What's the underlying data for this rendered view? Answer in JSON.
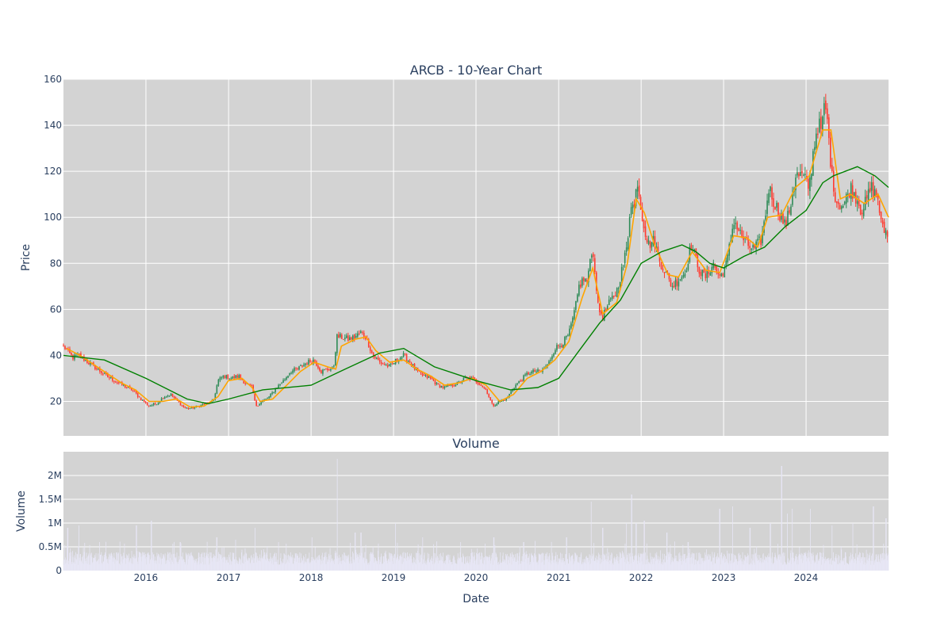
{
  "chart_data": [
    {
      "type": "candlestick",
      "title": "ARCB - 10-Year Chart",
      "ylabel": "Price",
      "xlim": [
        "2015-01-01",
        "2024-12-31"
      ],
      "ylim": [
        5,
        160
      ],
      "yticks": [
        20,
        40,
        60,
        80,
        100,
        120,
        140,
        160
      ],
      "grid": true,
      "legend": "none",
      "colors": {
        "up": "#2e8b57",
        "down": "#ff3b30",
        "ma_short": "#ffa500",
        "ma_long": "#008000",
        "plot_bg": "#d3d3d3"
      },
      "close_anchors": [
        [
          "2015-01-02",
          44
        ],
        [
          "2015-02-10",
          39
        ],
        [
          "2015-03-10",
          40
        ],
        [
          "2015-04-20",
          37
        ],
        [
          "2015-06-01",
          34
        ],
        [
          "2015-07-10",
          31
        ],
        [
          "2015-08-15",
          29
        ],
        [
          "2015-09-20",
          27
        ],
        [
          "2015-11-01",
          25
        ],
        [
          "2015-12-10",
          21
        ],
        [
          "2016-01-15",
          18
        ],
        [
          "2016-02-15",
          19
        ],
        [
          "2016-03-20",
          22
        ],
        [
          "2016-04-20",
          23
        ],
        [
          "2016-05-20",
          20
        ],
        [
          "2016-06-20",
          17
        ],
        [
          "2016-07-20",
          17
        ],
        [
          "2016-08-20",
          18
        ],
        [
          "2016-09-20",
          19
        ],
        [
          "2016-10-25",
          20
        ],
        [
          "2016-11-15",
          29
        ],
        [
          "2016-12-10",
          31
        ],
        [
          "2017-01-10",
          30
        ],
        [
          "2017-02-15",
          31
        ],
        [
          "2017-03-15",
          28
        ],
        [
          "2017-04-15",
          26
        ],
        [
          "2017-05-01",
          18
        ],
        [
          "2017-06-01",
          20
        ],
        [
          "2017-07-01",
          22
        ],
        [
          "2017-08-01",
          26
        ],
        [
          "2017-09-01",
          29
        ],
        [
          "2017-10-01",
          33
        ],
        [
          "2017-11-01",
          34
        ],
        [
          "2017-12-15",
          37
        ],
        [
          "2018-01-15",
          38
        ],
        [
          "2018-02-15",
          33
        ],
        [
          "2018-03-20",
          34
        ],
        [
          "2018-04-10",
          34
        ],
        [
          "2018-04-25",
          48
        ],
        [
          "2018-05-15",
          48
        ],
        [
          "2018-06-15",
          47
        ],
        [
          "2018-07-15",
          48
        ],
        [
          "2018-08-10",
          50
        ],
        [
          "2018-09-01",
          48
        ],
        [
          "2018-10-01",
          40
        ],
        [
          "2018-11-01",
          37
        ],
        [
          "2018-12-15",
          35
        ],
        [
          "2019-01-15",
          38
        ],
        [
          "2019-02-15",
          40
        ],
        [
          "2019-03-15",
          37
        ],
        [
          "2019-04-15",
          33
        ],
        [
          "2019-05-15",
          31
        ],
        [
          "2019-06-15",
          30
        ],
        [
          "2019-07-15",
          27
        ],
        [
          "2019-08-15",
          26
        ],
        [
          "2019-09-15",
          27
        ],
        [
          "2019-10-15",
          28
        ],
        [
          "2019-11-15",
          30
        ],
        [
          "2019-12-15",
          30
        ],
        [
          "2020-01-15",
          28
        ],
        [
          "2020-02-15",
          25
        ],
        [
          "2020-03-15",
          18
        ],
        [
          "2020-04-15",
          20
        ],
        [
          "2020-05-15",
          21
        ],
        [
          "2020-06-15",
          26
        ],
        [
          "2020-07-15",
          29
        ],
        [
          "2020-08-15",
          32
        ],
        [
          "2020-09-15",
          33
        ],
        [
          "2020-10-15",
          33
        ],
        [
          "2020-11-15",
          36
        ],
        [
          "2020-12-15",
          43
        ],
        [
          "2021-01-15",
          45
        ],
        [
          "2021-02-15",
          49
        ],
        [
          "2021-03-15",
          60
        ],
        [
          "2021-04-01",
          70
        ],
        [
          "2021-04-20",
          73
        ],
        [
          "2021-05-10",
          72
        ],
        [
          "2021-05-25",
          87
        ],
        [
          "2021-06-10",
          78
        ],
        [
          "2021-06-25",
          60
        ],
        [
          "2021-07-15",
          57
        ],
        [
          "2021-08-15",
          63
        ],
        [
          "2021-09-15",
          68
        ],
        [
          "2021-10-15",
          80
        ],
        [
          "2021-11-01",
          88
        ],
        [
          "2021-11-15",
          108
        ],
        [
          "2021-12-01",
          103
        ],
        [
          "2021-12-15",
          117
        ],
        [
          "2021-12-31",
          104
        ],
        [
          "2022-01-15",
          96
        ],
        [
          "2022-02-01",
          88
        ],
        [
          "2022-03-01",
          90
        ],
        [
          "2022-03-20",
          82
        ],
        [
          "2022-04-10",
          78
        ],
        [
          "2022-05-01",
          73
        ],
        [
          "2022-05-20",
          70
        ],
        [
          "2022-06-15",
          73
        ],
        [
          "2022-07-15",
          76
        ],
        [
          "2022-08-10",
          88
        ],
        [
          "2022-09-01",
          82
        ],
        [
          "2022-09-20",
          76
        ],
        [
          "2022-10-15",
          74
        ],
        [
          "2022-11-15",
          80
        ],
        [
          "2022-12-15",
          74
        ],
        [
          "2023-01-15",
          80
        ],
        [
          "2023-02-01",
          90
        ],
        [
          "2023-02-15",
          99
        ],
        [
          "2023-03-15",
          93
        ],
        [
          "2023-04-15",
          88
        ],
        [
          "2023-05-15",
          86
        ],
        [
          "2023-06-15",
          90
        ],
        [
          "2023-07-01",
          98
        ],
        [
          "2023-07-20",
          113
        ],
        [
          "2023-08-15",
          106
        ],
        [
          "2023-09-15",
          100
        ],
        [
          "2023-10-01",
          96
        ],
        [
          "2023-10-20",
          103
        ],
        [
          "2023-11-15",
          118
        ],
        [
          "2023-12-15",
          118
        ],
        [
          "2024-01-15",
          113
        ],
        [
          "2024-02-01",
          128
        ],
        [
          "2024-02-20",
          140
        ],
        [
          "2024-03-10",
          138
        ],
        [
          "2024-03-25",
          150
        ],
        [
          "2024-04-10",
          135
        ],
        [
          "2024-04-25",
          117
        ],
        [
          "2024-05-15",
          107
        ],
        [
          "2024-06-15",
          105
        ],
        [
          "2024-07-15",
          113
        ],
        [
          "2024-08-15",
          108
        ],
        [
          "2024-09-01",
          103
        ],
        [
          "2024-09-20",
          106
        ],
        [
          "2024-10-15",
          113
        ],
        [
          "2024-11-15",
          108
        ],
        [
          "2024-12-01",
          95
        ],
        [
          "2024-12-31",
          93
        ]
      ],
      "series": [
        {
          "role": "ma_short",
          "points": [
            [
              "2015-01-15",
              43
            ],
            [
              "2015-03-15",
              40
            ],
            [
              "2015-05-15",
              36
            ],
            [
              "2015-07-15",
              32
            ],
            [
              "2015-09-15",
              28
            ],
            [
              "2015-11-15",
              25
            ],
            [
              "2016-01-15",
              20
            ],
            [
              "2016-03-15",
              20
            ],
            [
              "2016-05-15",
              21
            ],
            [
              "2016-07-15",
              17.5
            ],
            [
              "2016-09-15",
              18
            ],
            [
              "2016-11-15",
              22
            ],
            [
              "2016-12-31",
              29
            ],
            [
              "2017-03-01",
              30
            ],
            [
              "2017-04-15",
              26
            ],
            [
              "2017-05-20",
              20
            ],
            [
              "2017-07-15",
              21
            ],
            [
              "2017-09-15",
              27
            ],
            [
              "2017-11-15",
              33
            ],
            [
              "2018-01-15",
              37
            ],
            [
              "2018-03-15",
              35
            ],
            [
              "2018-04-20",
              34
            ],
            [
              "2018-05-15",
              44
            ],
            [
              "2018-07-15",
              47
            ],
            [
              "2018-09-01",
              48
            ],
            [
              "2018-10-15",
              42
            ],
            [
              "2018-12-15",
              37
            ],
            [
              "2019-02-15",
              38
            ],
            [
              "2019-04-15",
              34
            ],
            [
              "2019-06-15",
              31
            ],
            [
              "2019-08-15",
              27
            ],
            [
              "2019-10-15",
              28
            ],
            [
              "2019-12-15",
              30
            ],
            [
              "2020-02-15",
              27
            ],
            [
              "2020-04-15",
              20
            ],
            [
              "2020-06-15",
              23
            ],
            [
              "2020-08-15",
              30
            ],
            [
              "2020-10-15",
              33
            ],
            [
              "2020-12-15",
              38
            ],
            [
              "2021-02-15",
              46
            ],
            [
              "2021-04-15",
              65
            ],
            [
              "2021-06-01",
              78
            ],
            [
              "2021-07-15",
              58
            ],
            [
              "2021-09-15",
              63
            ],
            [
              "2021-11-01",
              80
            ],
            [
              "2021-12-10",
              108
            ],
            [
              "2022-01-15",
              102
            ],
            [
              "2022-03-01",
              88
            ],
            [
              "2022-05-01",
              75
            ],
            [
              "2022-06-15",
              74
            ],
            [
              "2022-08-15",
              85
            ],
            [
              "2022-10-15",
              77
            ],
            [
              "2022-12-15",
              76
            ],
            [
              "2023-02-15",
              92
            ],
            [
              "2023-04-15",
              91
            ],
            [
              "2023-06-01",
              87
            ],
            [
              "2023-07-15",
              100
            ],
            [
              "2023-09-15",
              101
            ],
            [
              "2023-11-15",
              113
            ],
            [
              "2024-01-15",
              118
            ],
            [
              "2024-03-15",
              138
            ],
            [
              "2024-04-20",
              138
            ],
            [
              "2024-06-01",
              108
            ],
            [
              "2024-07-15",
              110
            ],
            [
              "2024-09-15",
              106
            ],
            [
              "2024-11-15",
              110
            ],
            [
              "2024-12-31",
              100
            ]
          ]
        },
        {
          "role": "ma_long",
          "points": [
            [
              "2015-01-01",
              40
            ],
            [
              "2015-07-01",
              38
            ],
            [
              "2016-01-01",
              30
            ],
            [
              "2016-07-01",
              21
            ],
            [
              "2016-10-01",
              19
            ],
            [
              "2017-01-01",
              21
            ],
            [
              "2017-06-01",
              25
            ],
            [
              "2018-01-01",
              27
            ],
            [
              "2018-06-01",
              34
            ],
            [
              "2018-11-01",
              41
            ],
            [
              "2019-02-15",
              43
            ],
            [
              "2019-07-01",
              35
            ],
            [
              "2020-01-01",
              29
            ],
            [
              "2020-06-01",
              25
            ],
            [
              "2020-10-01",
              26
            ],
            [
              "2021-01-01",
              30
            ],
            [
              "2021-04-01",
              42
            ],
            [
              "2021-07-01",
              54
            ],
            [
              "2021-10-01",
              64
            ],
            [
              "2022-01-01",
              80
            ],
            [
              "2022-04-01",
              85
            ],
            [
              "2022-07-01",
              88
            ],
            [
              "2022-09-01",
              85
            ],
            [
              "2022-11-01",
              80
            ],
            [
              "2023-01-01",
              78
            ],
            [
              "2023-04-01",
              83
            ],
            [
              "2023-07-01",
              87
            ],
            [
              "2023-10-01",
              96
            ],
            [
              "2024-01-01",
              103
            ],
            [
              "2024-03-15",
              115
            ],
            [
              "2024-05-01",
              118
            ],
            [
              "2024-08-15",
              122
            ],
            [
              "2024-11-01",
              118
            ],
            [
              "2024-12-31",
              113
            ]
          ]
        }
      ]
    },
    {
      "type": "bar",
      "title": "Volume",
      "xlabel": "Date",
      "ylabel": "Volume",
      "ylim": [
        0,
        2500000
      ],
      "yticks": [
        0,
        500000,
        1000000,
        1500000,
        2000000
      ],
      "ytick_labels": [
        "0",
        "0.5M",
        "1M",
        "1.5M",
        "2M"
      ],
      "xticks": [
        "2016-01-01",
        "2017-01-01",
        "2018-01-01",
        "2019-01-01",
        "2020-01-01",
        "2021-01-01",
        "2022-01-01",
        "2023-01-01",
        "2024-01-01"
      ],
      "xtick_labels": [
        "2016",
        "2017",
        "2018",
        "2019",
        "2020",
        "2021",
        "2022",
        "2023",
        "2024"
      ],
      "colors": {
        "bar": "#e7e6f5",
        "plot_bg": "#d3d3d3"
      },
      "baseline_volume": 300000,
      "spikes": [
        [
          "2015-01-20",
          900000
        ],
        [
          "2015-03-10",
          950000
        ],
        [
          "2015-06-10",
          600000
        ],
        [
          "2015-11-20",
          950000
        ],
        [
          "2016-01-25",
          1050000
        ],
        [
          "2016-06-01",
          600000
        ],
        [
          "2016-11-10",
          700000
        ],
        [
          "2017-02-01",
          650000
        ],
        [
          "2017-04-28",
          900000
        ],
        [
          "2017-08-10",
          600000
        ],
        [
          "2018-01-05",
          700000
        ],
        [
          "2018-04-27",
          2350000
        ],
        [
          "2018-07-15",
          800000
        ],
        [
          "2018-08-10",
          800000
        ],
        [
          "2019-01-10",
          1000000
        ],
        [
          "2019-05-10",
          700000
        ],
        [
          "2019-10-25",
          600000
        ],
        [
          "2020-03-20",
          700000
        ],
        [
          "2020-07-30",
          600000
        ],
        [
          "2021-02-05",
          700000
        ],
        [
          "2021-05-25",
          1450000
        ],
        [
          "2021-07-15",
          900000
        ],
        [
          "2021-10-28",
          1000000
        ],
        [
          "2021-11-20",
          1600000
        ],
        [
          "2021-12-10",
          1000000
        ],
        [
          "2022-01-15",
          1050000
        ],
        [
          "2022-04-25",
          800000
        ],
        [
          "2022-07-28",
          600000
        ],
        [
          "2022-12-15",
          1300000
        ],
        [
          "2023-02-10",
          1350000
        ],
        [
          "2023-04-28",
          900000
        ],
        [
          "2023-07-27",
          1000000
        ],
        [
          "2023-09-15",
          2200000
        ],
        [
          "2023-10-10",
          1200000
        ],
        [
          "2023-11-01",
          1300000
        ],
        [
          "2024-01-20",
          1300000
        ],
        [
          "2024-04-25",
          950000
        ],
        [
          "2024-07-26",
          1000000
        ],
        [
          "2024-10-25",
          1350000
        ],
        [
          "2024-12-20",
          1100000
        ]
      ]
    }
  ]
}
